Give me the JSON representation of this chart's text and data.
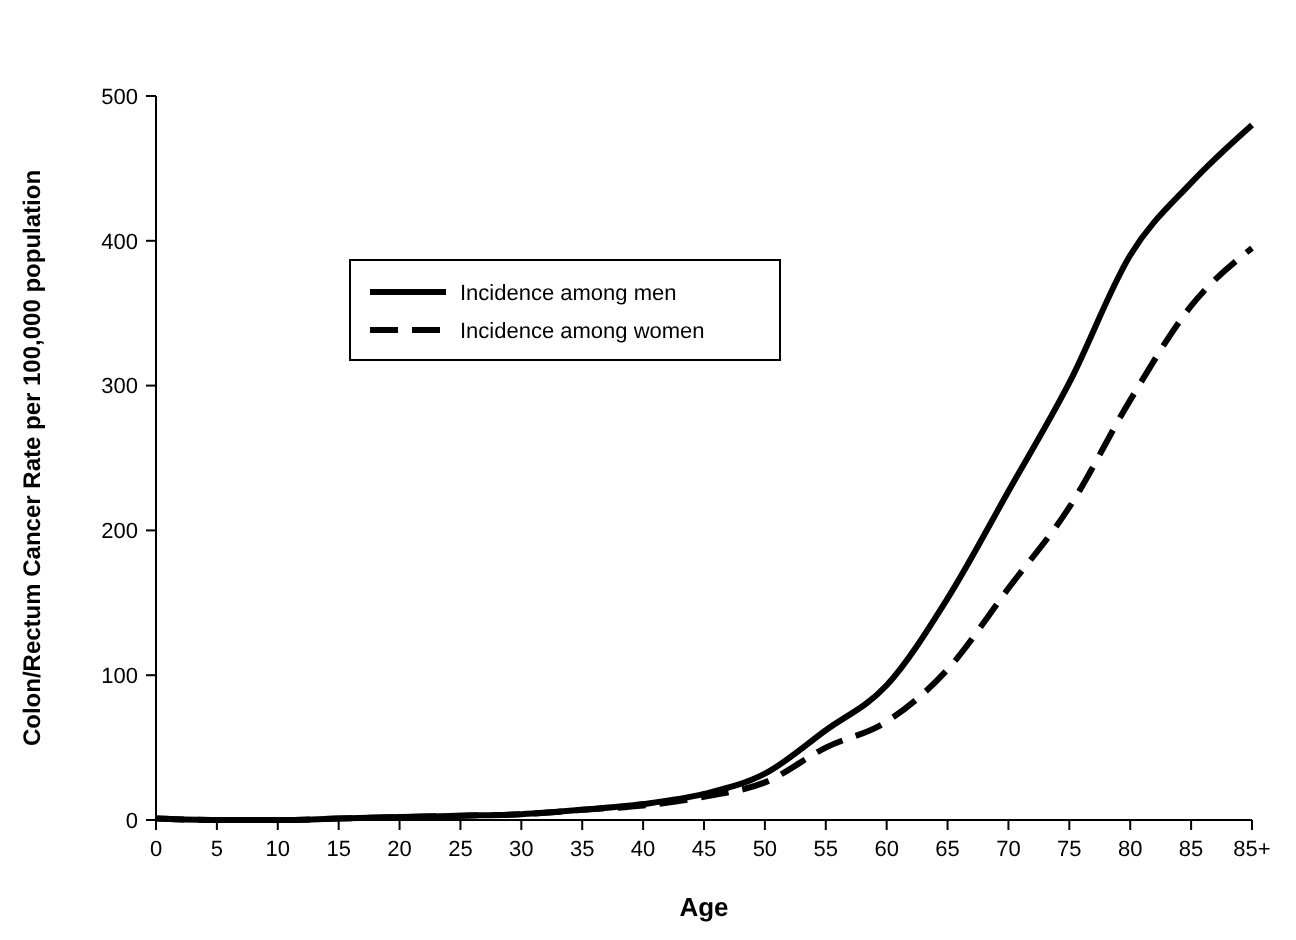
{
  "chart_data": {
    "type": "line",
    "xlabel": "Age",
    "ylabel": "Colon/Rectum Cancer Rate per 100,000 population",
    "categories": [
      "0",
      "5",
      "10",
      "15",
      "20",
      "25",
      "30",
      "35",
      "40",
      "45",
      "50",
      "55",
      "60",
      "65",
      "70",
      "75",
      "80",
      "85",
      "85+"
    ],
    "ylim": [
      0,
      500
    ],
    "yticks": [
      0,
      100,
      200,
      300,
      400,
      500
    ],
    "grid": false,
    "legend": "top left",
    "marker": "none",
    "series": [
      {
        "name": "Incidence among men",
        "color": "#000000",
        "line_style": "solid",
        "values": [
          1,
          0,
          0,
          1,
          2,
          3,
          4,
          7,
          11,
          18,
          32,
          62,
          93,
          153,
          227,
          302,
          390,
          440,
          480
        ]
      },
      {
        "name": "Incidence among women",
        "color": "#000000",
        "line_style": "dashed",
        "values": [
          1,
          0,
          0,
          1,
          2,
          3,
          4,
          7,
          10,
          16,
          26,
          50,
          68,
          104,
          160,
          216,
          290,
          355,
          395
        ]
      }
    ]
  }
}
